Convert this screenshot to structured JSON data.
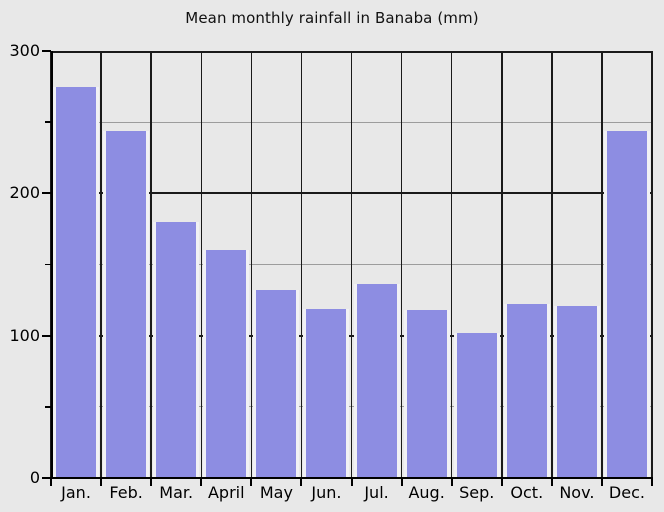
{
  "chart_data": {
    "type": "bar",
    "title": "Mean monthly rainfall in Banaba (mm)",
    "categories": [
      "Jan.",
      "Feb.",
      "Mar.",
      "April",
      "May",
      "Jun.",
      "Jul.",
      "Aug.",
      "Sep.",
      "Oct.",
      "Nov.",
      "Dec."
    ],
    "values": [
      275,
      244,
      180,
      160,
      132,
      119,
      136,
      118,
      102,
      122,
      121,
      244
    ],
    "xlabel": "",
    "ylabel": "",
    "ylim": [
      0,
      300
    ],
    "yticks_major": [
      0,
      100,
      200,
      300
    ],
    "ytick_labels": [
      "0",
      "100",
      "200",
      "300"
    ],
    "yticks_minor": [
      50,
      150,
      250
    ],
    "grid": true,
    "legend_position": "none",
    "colors": {
      "bar_fill": "#8d8de2",
      "bar_edge": "#f1f1f4",
      "background": "#e8e8e8",
      "grid_major": "#1a1a1a",
      "grid_minor": "#9c9c9c",
      "axis": "#000000",
      "text": "#000000"
    }
  }
}
